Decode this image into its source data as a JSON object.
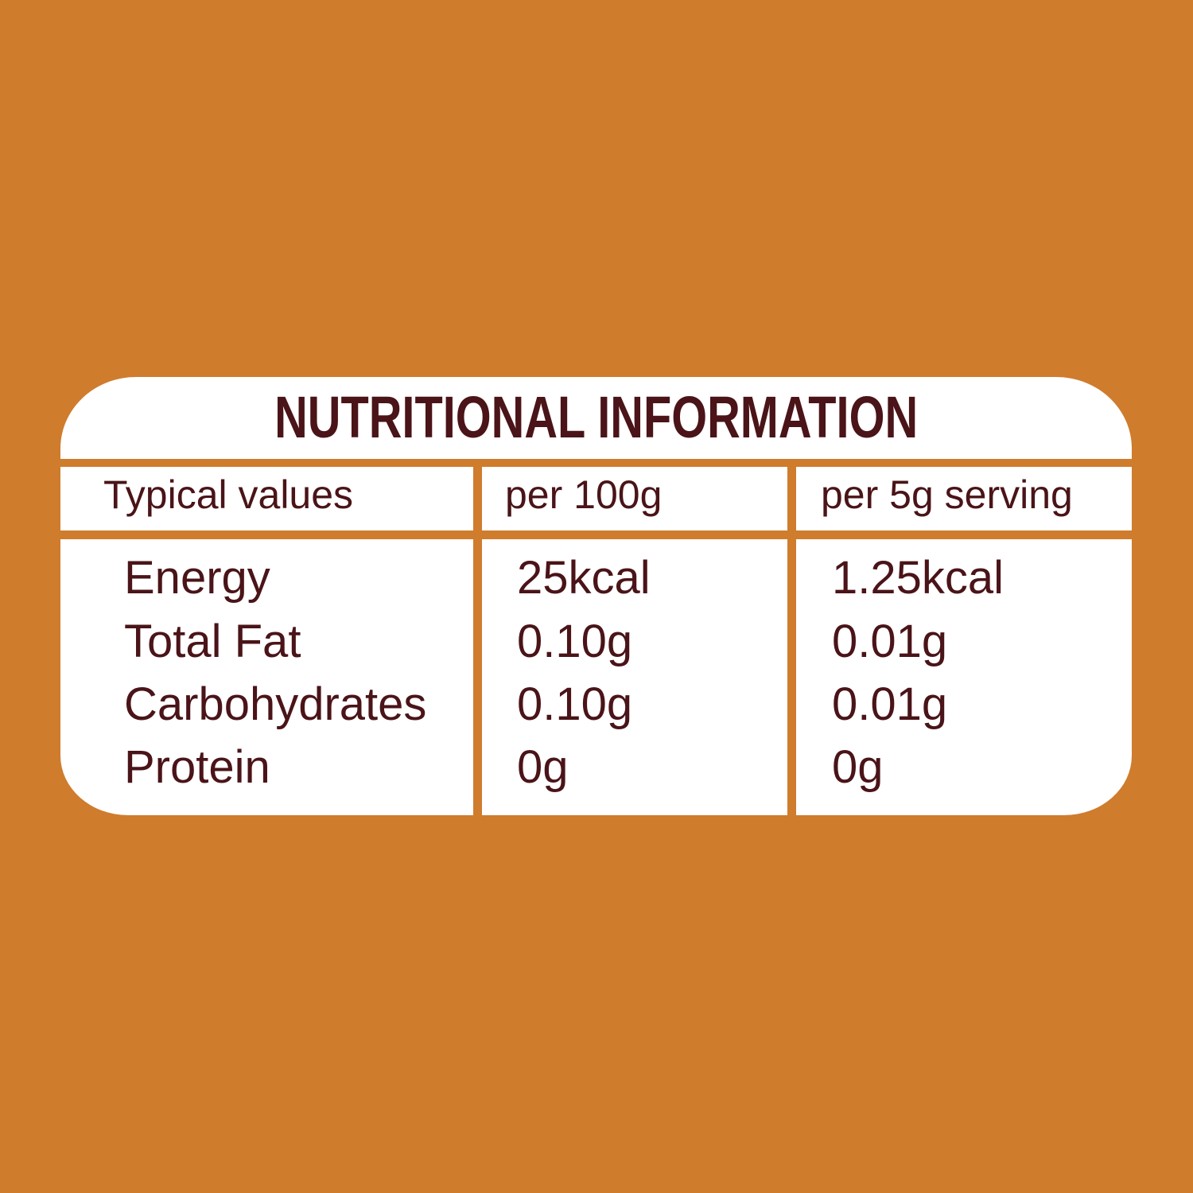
{
  "colors": {
    "background": "#CF7C2D",
    "panel": "#FFFFFF",
    "text": "#4A1418"
  },
  "title": "NUTRITIONAL INFORMATION",
  "columns": [
    "Typical values",
    "per 100g",
    "per 5g serving"
  ],
  "rows": [
    {
      "label": "Energy",
      "per100": "25kcal",
      "serving": "1.25kcal"
    },
    {
      "label": "Total Fat",
      "per100": "0.10g",
      "serving": "0.01g"
    },
    {
      "label": "Carbohydrates",
      "per100": "0.10g",
      "serving": "0.01g"
    },
    {
      "label": "Protein",
      "per100": "0g",
      "serving": "0g"
    }
  ]
}
